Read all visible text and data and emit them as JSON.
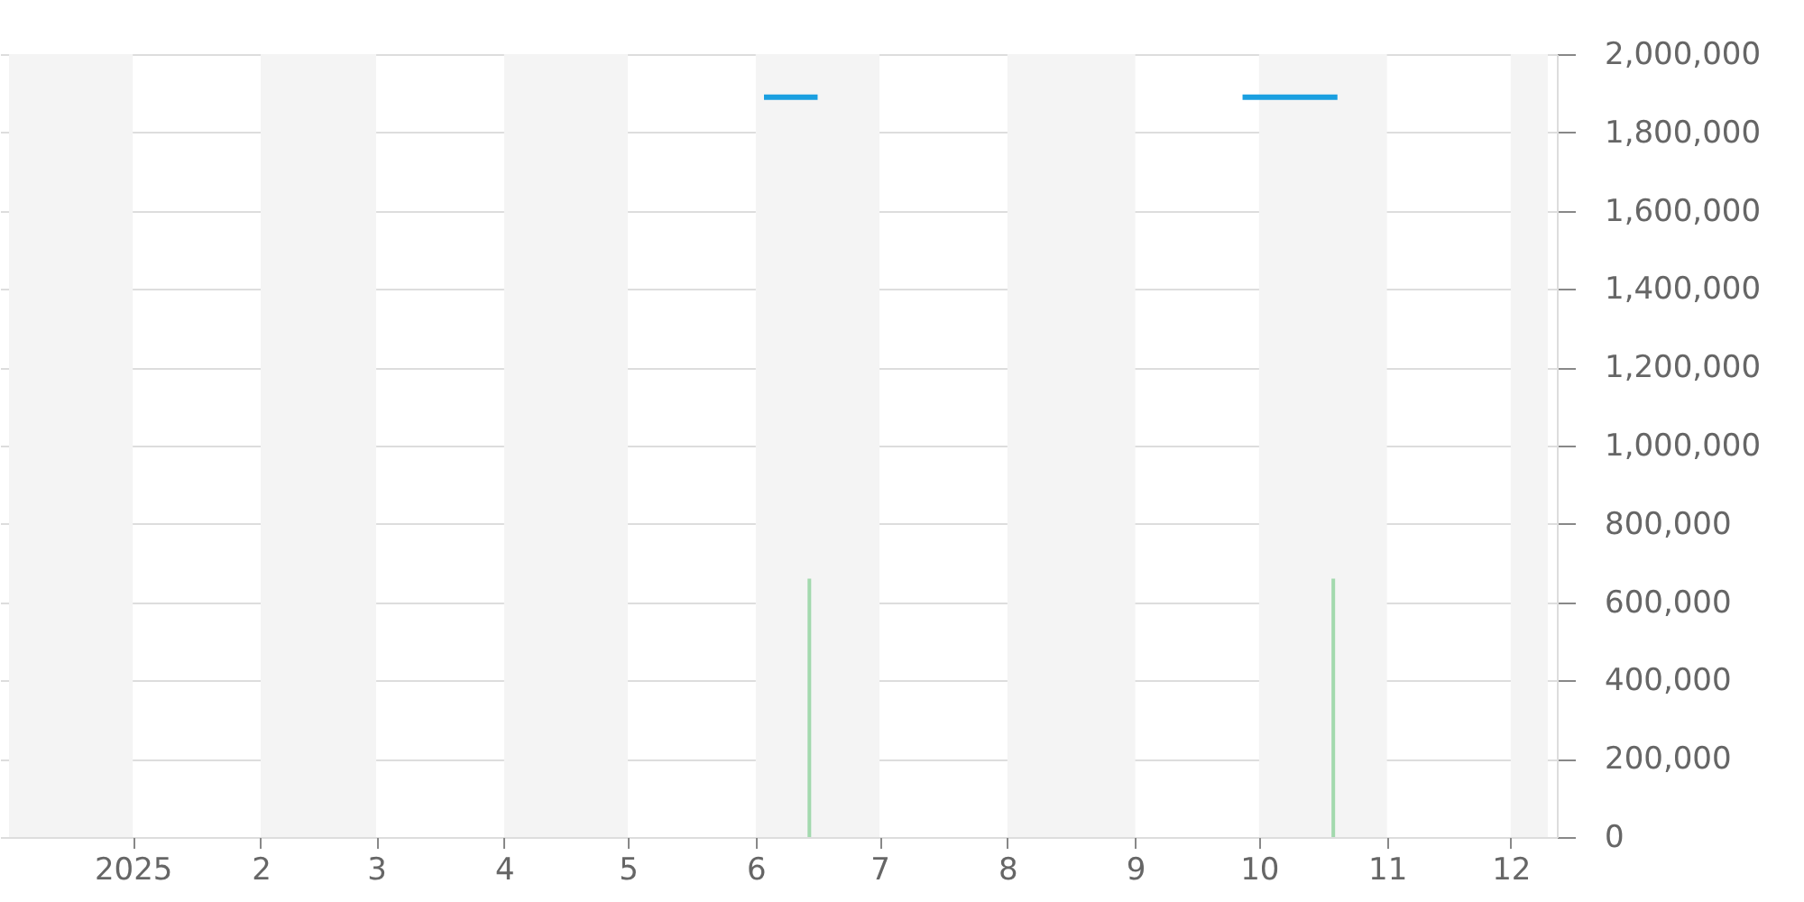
{
  "chart_data": {
    "type": "line",
    "xlim": [
      "2024-12-02",
      "2025-12-10"
    ],
    "ylim": [
      0,
      2000000
    ],
    "xticks": [
      {
        "value": "2025-01-01",
        "label": "2025"
      },
      {
        "value": "2025-02-01",
        "label": "2"
      },
      {
        "value": "2025-03-01",
        "label": "3"
      },
      {
        "value": "2025-04-01",
        "label": "4"
      },
      {
        "value": "2025-05-01",
        "label": "5"
      },
      {
        "value": "2025-06-01",
        "label": "6"
      },
      {
        "value": "2025-07-01",
        "label": "7"
      },
      {
        "value": "2025-08-01",
        "label": "8"
      },
      {
        "value": "2025-09-01",
        "label": "9"
      },
      {
        "value": "2025-10-01",
        "label": "10"
      },
      {
        "value": "2025-11-01",
        "label": "11"
      },
      {
        "value": "2025-12-01",
        "label": "12"
      }
    ],
    "yticks": [
      {
        "value": 0,
        "label": "0"
      },
      {
        "value": 200000,
        "label": "200,000"
      },
      {
        "value": 400000,
        "label": "400,000"
      },
      {
        "value": 600000,
        "label": "600,000"
      },
      {
        "value": 800000,
        "label": "800,000"
      },
      {
        "value": 1000000,
        "label": "1,000,000"
      },
      {
        "value": 1200000,
        "label": "1,200,000"
      },
      {
        "value": 1400000,
        "label": "1,400,000"
      },
      {
        "value": 1600000,
        "label": "1,600,000"
      },
      {
        "value": 1800000,
        "label": "1,800,000"
      },
      {
        "value": 2000000,
        "label": "2,000,000"
      }
    ],
    "grid": "y",
    "marker": "none",
    "line_style": "solid",
    "bands": [
      {
        "axis": "x",
        "from": "2024-12-02",
        "to": "2025-01-01",
        "color": "#f4f4f4"
      },
      {
        "axis": "x",
        "from": "2025-02-01",
        "to": "2025-03-01",
        "color": "#f4f4f4"
      },
      {
        "axis": "x",
        "from": "2025-04-01",
        "to": "2025-05-01",
        "color": "#f4f4f4"
      },
      {
        "axis": "x",
        "from": "2025-06-01",
        "to": "2025-07-01",
        "color": "#f4f4f4"
      },
      {
        "axis": "x",
        "from": "2025-08-01",
        "to": "2025-09-01",
        "color": "#f4f4f4"
      },
      {
        "axis": "x",
        "from": "2025-10-01",
        "to": "2025-11-01",
        "color": "#f4f4f4"
      },
      {
        "axis": "x",
        "from": "2025-12-01",
        "to": "2025-12-10",
        "color": "#f4f4f4"
      }
    ],
    "series": [
      {
        "type": "bar",
        "color": "#a3d9ae",
        "x": [
          "2025-06-14",
          "2025-10-19"
        ],
        "values": [
          660000,
          660000
        ]
      },
      {
        "color": "#1a9fe0",
        "x": [
          "2025-06-03",
          "2025-06-16"
        ],
        "values": [
          1890000,
          1890000
        ]
      },
      {
        "color": "#1a9fe0",
        "x": [
          "2025-09-27",
          "2025-10-20"
        ],
        "values": [
          1890000,
          1890000
        ]
      }
    ]
  }
}
